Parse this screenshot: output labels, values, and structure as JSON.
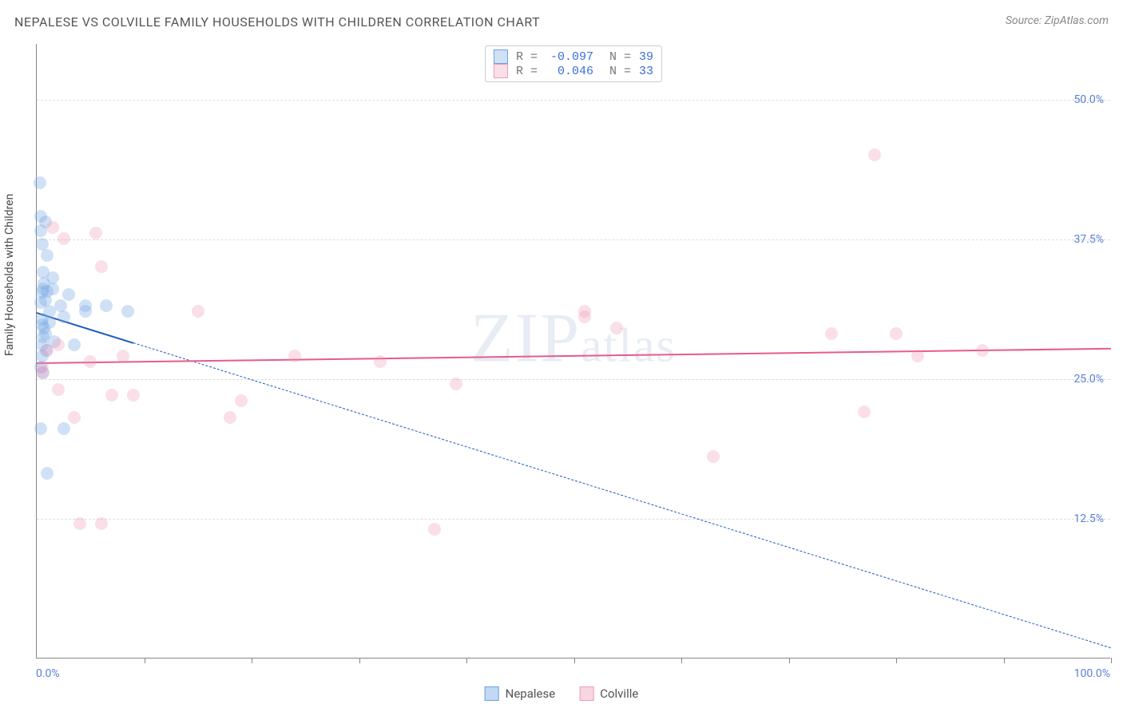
{
  "title": "NEPALESE VS COLVILLE FAMILY HOUSEHOLDS WITH CHILDREN CORRELATION CHART",
  "source": "Source: ZipAtlas.com",
  "watermark": "ZIPatlas",
  "ylabel": "Family Households with Children",
  "chart": {
    "type": "scatter",
    "xlim": [
      0,
      100
    ],
    "ylim": [
      0,
      55
    ],
    "xaxis_label_min": "0.0%",
    "xaxis_label_max": "100.0%",
    "xtick_positions": [
      0,
      10,
      20,
      30,
      40,
      50,
      60,
      70,
      80,
      90,
      100
    ],
    "yticks": [
      {
        "value": 12.5,
        "label": "12.5%"
      },
      {
        "value": 25.0,
        "label": "25.0%"
      },
      {
        "value": 37.5,
        "label": "37.5%"
      },
      {
        "value": 50.0,
        "label": "50.0%"
      }
    ],
    "background_color": "#ffffff",
    "grid_color": "#dddddd",
    "axis_color": "#888888",
    "tick_label_color": "#5b7fd6",
    "marker_radius": 8,
    "series": [
      {
        "name": "Nepalese",
        "color_fill": "rgba(120,170,230,0.35)",
        "color_border": "#6ea0e0",
        "trend_color": "#1d5bbf",
        "R": "-0.097",
        "N": "39",
        "trend": {
          "x1": 0,
          "y1": 31.0,
          "x2": 100,
          "y2": 1.0,
          "solid_until_x": 9
        },
        "points": [
          {
            "x": 0.3,
            "y": 42.5
          },
          {
            "x": 0.4,
            "y": 39.5
          },
          {
            "x": 0.4,
            "y": 38.2
          },
          {
            "x": 0.5,
            "y": 37.0
          },
          {
            "x": 0.8,
            "y": 39.0
          },
          {
            "x": 0.6,
            "y": 34.5
          },
          {
            "x": 0.7,
            "y": 33.5
          },
          {
            "x": 0.5,
            "y": 32.7
          },
          {
            "x": 0.6,
            "y": 33.0
          },
          {
            "x": 0.4,
            "y": 31.8
          },
          {
            "x": 0.8,
            "y": 32.0
          },
          {
            "x": 0.5,
            "y": 30.3
          },
          {
            "x": 0.7,
            "y": 29.5
          },
          {
            "x": 0.6,
            "y": 28.7
          },
          {
            "x": 0.5,
            "y": 28.0
          },
          {
            "x": 0.9,
            "y": 27.5
          },
          {
            "x": 0.5,
            "y": 27.0
          },
          {
            "x": 0.4,
            "y": 26.0
          },
          {
            "x": 1.5,
            "y": 34.0
          },
          {
            "x": 1.5,
            "y": 33.0
          },
          {
            "x": 1.0,
            "y": 36.0
          },
          {
            "x": 1.2,
            "y": 31.0
          },
          {
            "x": 1.6,
            "y": 28.3
          },
          {
            "x": 2.2,
            "y": 31.5
          },
          {
            "x": 2.5,
            "y": 30.5
          },
          {
            "x": 3.0,
            "y": 32.5
          },
          {
            "x": 3.5,
            "y": 28.0
          },
          {
            "x": 4.5,
            "y": 31.5
          },
          {
            "x": 4.5,
            "y": 31.0
          },
          {
            "x": 6.5,
            "y": 31.5
          },
          {
            "x": 8.5,
            "y": 31.0
          },
          {
            "x": 0.4,
            "y": 20.5
          },
          {
            "x": 2.5,
            "y": 20.5
          },
          {
            "x": 1.0,
            "y": 16.5
          },
          {
            "x": 1.2,
            "y": 30.0
          },
          {
            "x": 0.8,
            "y": 29.0
          },
          {
            "x": 0.6,
            "y": 25.5
          },
          {
            "x": 0.5,
            "y": 29.8
          },
          {
            "x": 1.0,
            "y": 32.8
          }
        ]
      },
      {
        "name": "Colville",
        "color_fill": "rgba(240,150,180,0.30)",
        "color_border": "#ec9db8",
        "trend_color": "#e75a8d",
        "R": "0.046",
        "N": "33",
        "trend": {
          "x1": 0,
          "y1": 26.5,
          "x2": 100,
          "y2": 27.8,
          "solid_until_x": 100
        },
        "points": [
          {
            "x": 0.5,
            "y": 26.0
          },
          {
            "x": 1.0,
            "y": 27.5
          },
          {
            "x": 0.5,
            "y": 25.5
          },
          {
            "x": 1.5,
            "y": 38.5
          },
          {
            "x": 2.5,
            "y": 37.5
          },
          {
            "x": 5.5,
            "y": 38.0
          },
          {
            "x": 3.5,
            "y": 21.5
          },
          {
            "x": 2.0,
            "y": 24.0
          },
          {
            "x": 2.0,
            "y": 28.0
          },
          {
            "x": 5.0,
            "y": 26.5
          },
          {
            "x": 6.0,
            "y": 35.0
          },
          {
            "x": 7.0,
            "y": 23.5
          },
          {
            "x": 9.0,
            "y": 23.5
          },
          {
            "x": 8.0,
            "y": 27.0
          },
          {
            "x": 15.0,
            "y": 31.0
          },
          {
            "x": 18.0,
            "y": 21.5
          },
          {
            "x": 19.0,
            "y": 23.0
          },
          {
            "x": 24.0,
            "y": 27.0
          },
          {
            "x": 32.0,
            "y": 26.5
          },
          {
            "x": 39.0,
            "y": 24.5
          },
          {
            "x": 37.0,
            "y": 11.5
          },
          {
            "x": 51.0,
            "y": 30.5
          },
          {
            "x": 51.0,
            "y": 31.0
          },
          {
            "x": 54.0,
            "y": 29.5
          },
          {
            "x": 63.0,
            "y": 18.0
          },
          {
            "x": 74.0,
            "y": 29.0
          },
          {
            "x": 77.0,
            "y": 22.0
          },
          {
            "x": 78.0,
            "y": 45.0
          },
          {
            "x": 80.0,
            "y": 29.0
          },
          {
            "x": 82.0,
            "y": 27.0
          },
          {
            "x": 88.0,
            "y": 27.5
          },
          {
            "x": 4.0,
            "y": 12.0
          },
          {
            "x": 6.0,
            "y": 12.0
          }
        ]
      }
    ]
  },
  "stats_labels": {
    "R": "R =",
    "N": "N ="
  },
  "legend_items": [
    {
      "label": "Nepalese",
      "fill": "rgba(120,170,230,0.45)",
      "border": "#6ea0e0"
    },
    {
      "label": "Colville",
      "fill": "rgba(240,150,180,0.40)",
      "border": "#ec9db8"
    }
  ]
}
